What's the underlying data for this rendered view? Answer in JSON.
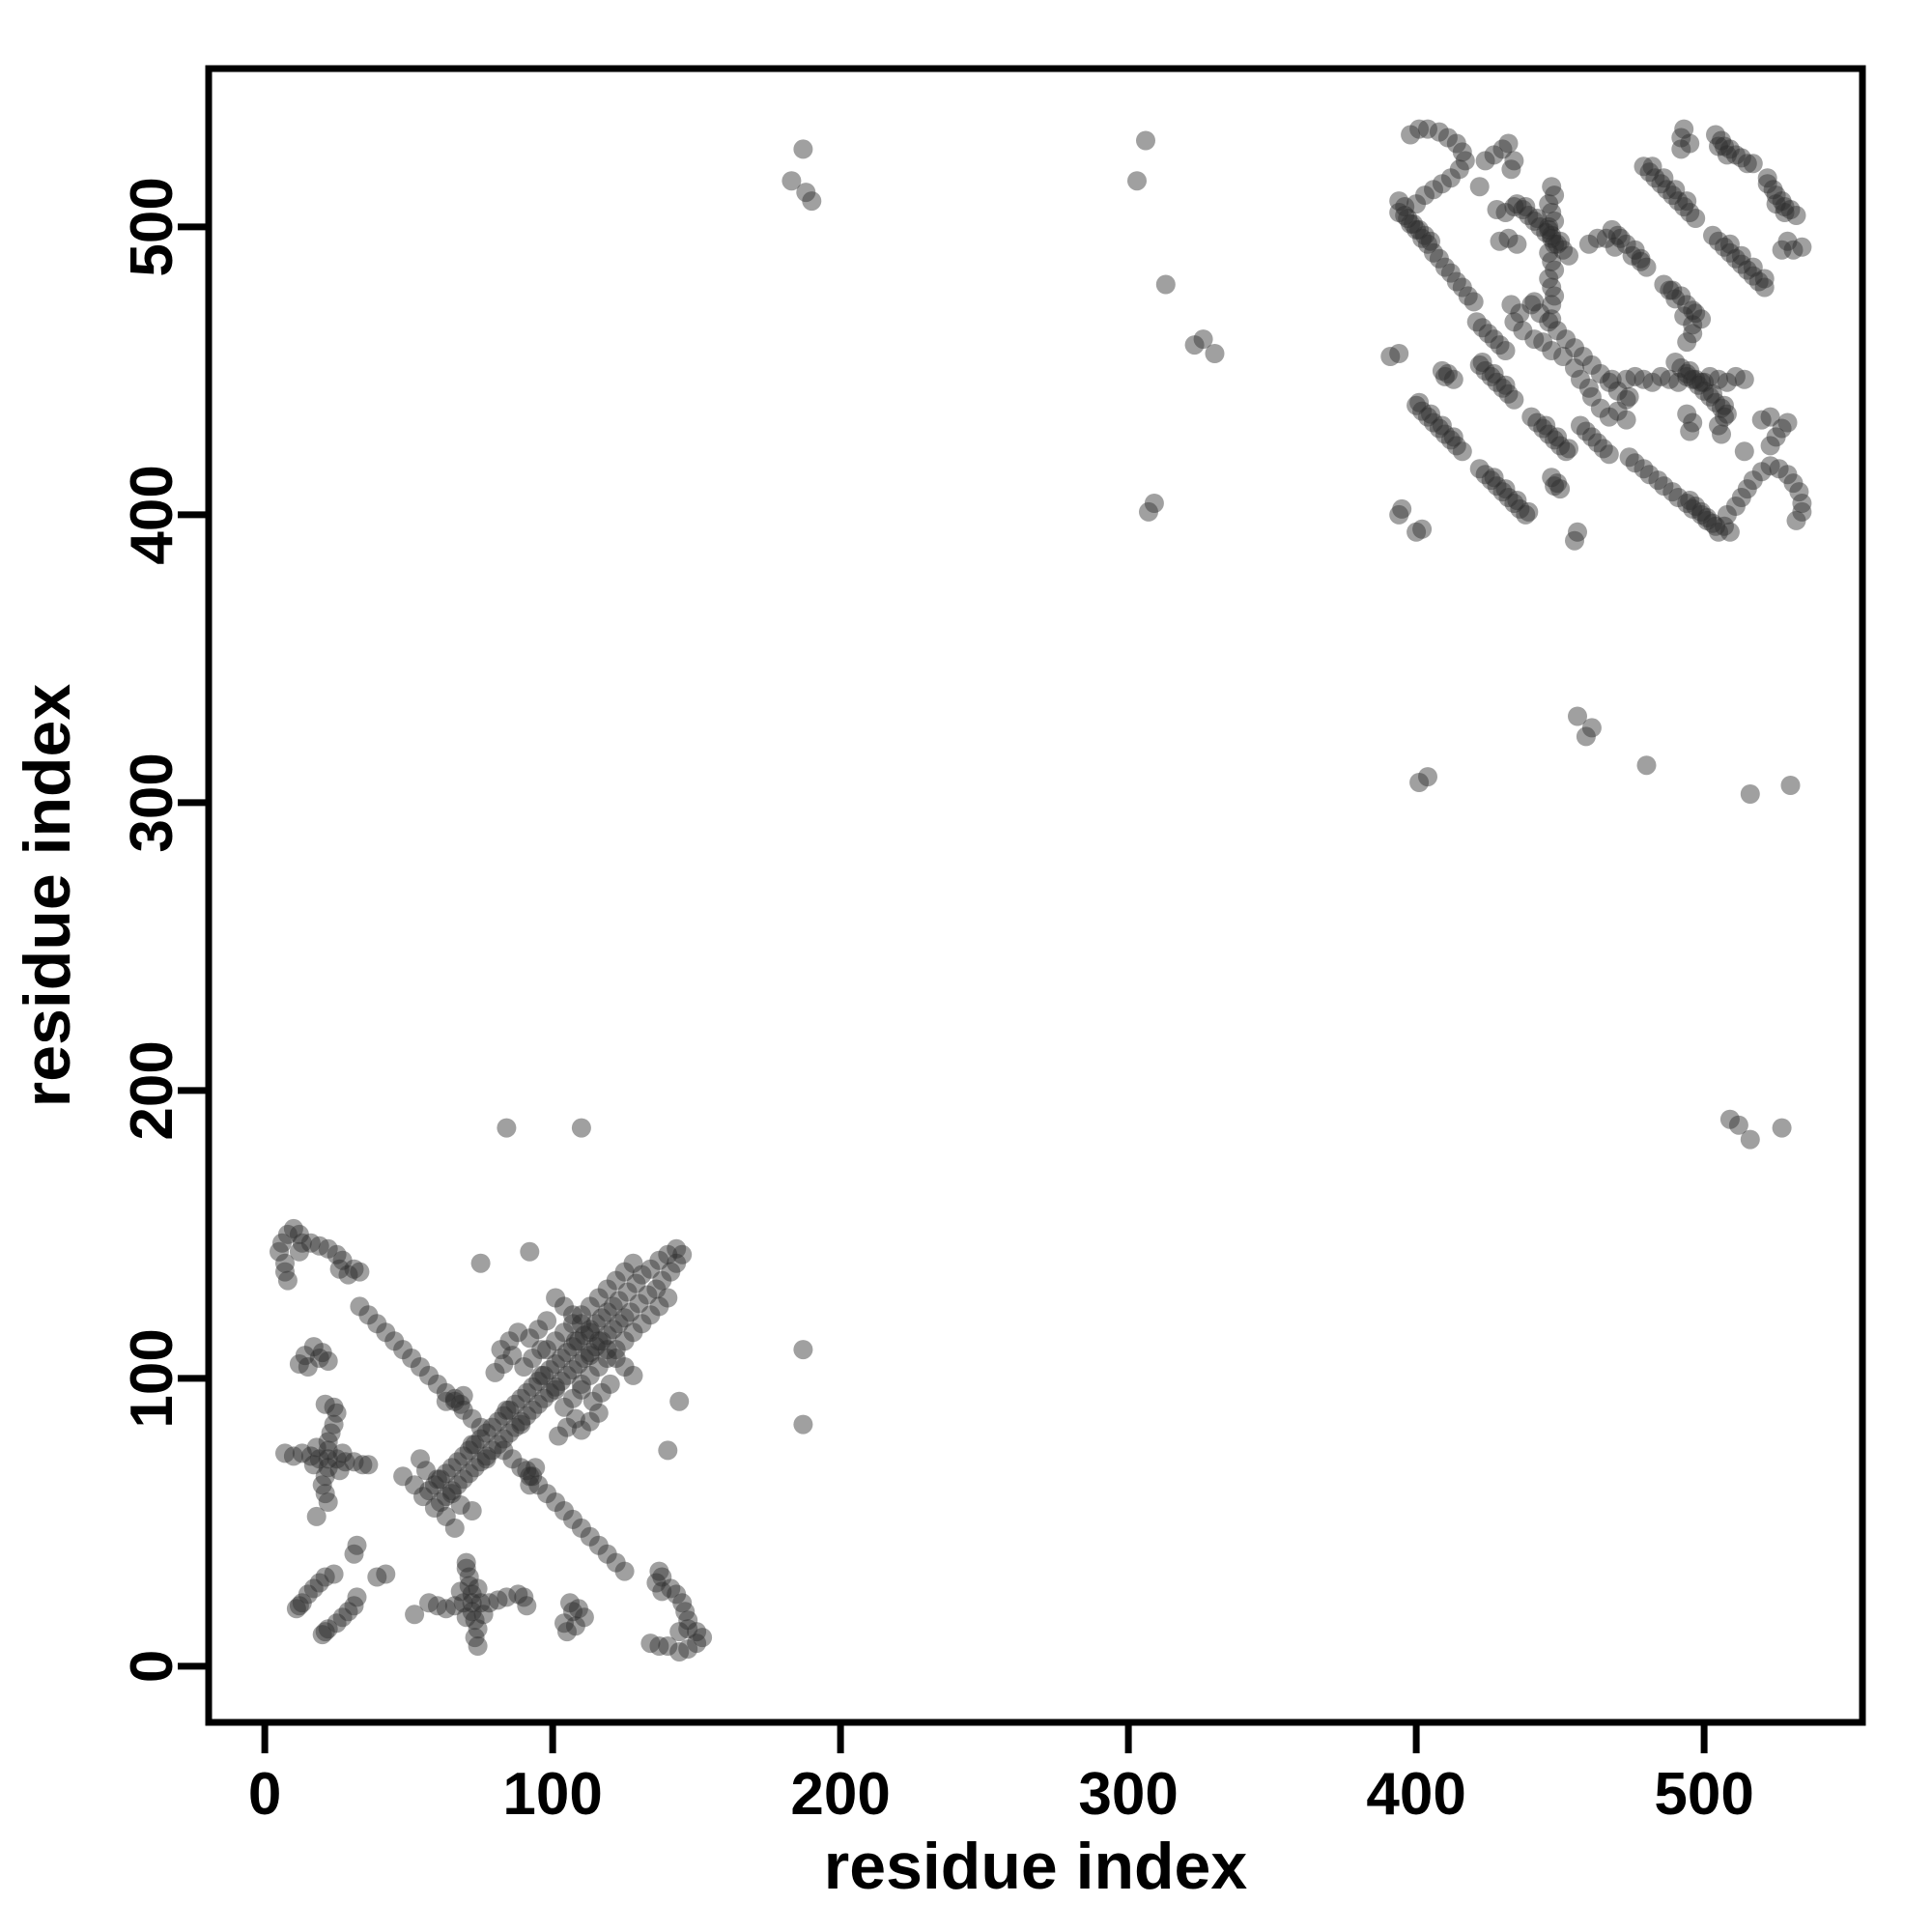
{
  "chart_data": {
    "type": "scatter",
    "title": "",
    "xlabel": "residue index",
    "ylabel": "residue index",
    "x_ticks": [
      0,
      100,
      200,
      300,
      400,
      500
    ],
    "y_ticks": [
      0,
      100,
      200,
      300,
      400,
      500
    ],
    "xlim": [
      -19.5,
      555
    ],
    "ylim": [
      -19.5,
      555
    ],
    "grid": false,
    "legend": "none",
    "point_color": "#2d2d2d",
    "point_opacity": 0.45,
    "point_radius_px": 10,
    "symmetric_mirror": true,
    "description": "Protein residue-residue contact map; points listed for upper triangle (x<y) and mirrored across the diagonal",
    "points": [
      [
        5,
        144
      ],
      [
        6,
        147
      ],
      [
        8,
        150
      ],
      [
        10,
        152
      ],
      [
        12,
        150
      ],
      [
        13,
        147
      ],
      [
        12,
        144
      ],
      [
        7,
        140
      ],
      [
        7,
        137
      ],
      [
        8,
        134
      ],
      [
        16,
        147
      ],
      [
        19,
        146
      ],
      [
        22,
        145
      ],
      [
        25,
        143
      ],
      [
        27,
        141
      ],
      [
        26,
        138
      ],
      [
        29,
        136
      ],
      [
        31,
        138
      ],
      [
        33,
        137
      ],
      [
        12,
        105
      ],
      [
        15,
        104
      ],
      [
        14,
        108
      ],
      [
        17,
        111
      ],
      [
        20,
        109
      ],
      [
        22,
        106
      ],
      [
        19,
        107
      ],
      [
        21,
        91
      ],
      [
        24,
        90
      ],
      [
        25,
        88
      ],
      [
        22,
        72
      ],
      [
        19,
        72
      ],
      [
        25,
        72
      ],
      [
        22,
        75
      ],
      [
        22,
        69
      ],
      [
        16,
        73
      ],
      [
        28,
        71
      ],
      [
        22,
        78
      ],
      [
        21,
        66
      ],
      [
        13,
        74
      ],
      [
        31,
        71
      ],
      [
        23,
        81
      ],
      [
        20,
        63
      ],
      [
        10,
        73
      ],
      [
        34,
        70
      ],
      [
        24,
        84
      ],
      [
        21,
        60
      ],
      [
        7,
        74
      ],
      [
        36,
        70
      ],
      [
        17,
        70
      ],
      [
        27,
        74
      ],
      [
        18,
        76
      ],
      [
        26,
        68
      ],
      [
        22,
        57
      ],
      [
        18,
        52
      ],
      [
        11,
        20
      ],
      [
        12,
        21
      ],
      [
        13,
        22
      ],
      [
        15,
        25
      ],
      [
        17,
        27
      ],
      [
        19,
        29
      ],
      [
        21,
        31
      ],
      [
        24,
        32
      ],
      [
        31,
        39
      ],
      [
        32,
        42
      ],
      [
        84,
        187
      ],
      [
        110,
        187
      ],
      [
        55,
        59
      ],
      [
        57,
        61
      ],
      [
        59,
        63
      ],
      [
        61,
        65
      ],
      [
        63,
        67
      ],
      [
        65,
        69
      ],
      [
        67,
        71
      ],
      [
        69,
        73
      ],
      [
        71,
        75
      ],
      [
        73,
        77
      ],
      [
        75,
        79
      ],
      [
        77,
        81
      ],
      [
        79,
        83
      ],
      [
        81,
        85
      ],
      [
        83,
        87
      ],
      [
        85,
        89
      ],
      [
        87,
        91
      ],
      [
        89,
        93
      ],
      [
        91,
        95
      ],
      [
        93,
        97
      ],
      [
        95,
        99
      ],
      [
        97,
        101
      ],
      [
        99,
        103
      ],
      [
        101,
        105
      ],
      [
        103,
        107
      ],
      [
        105,
        109
      ],
      [
        107,
        111
      ],
      [
        109,
        113
      ],
      [
        111,
        115
      ],
      [
        113,
        117
      ],
      [
        115,
        119
      ],
      [
        117,
        121
      ],
      [
        119,
        123
      ],
      [
        121,
        125
      ],
      [
        123,
        127
      ],
      [
        60,
        65
      ],
      [
        72,
        77
      ],
      [
        84,
        89
      ],
      [
        96,
        101
      ],
      [
        108,
        113
      ],
      [
        126,
        130
      ],
      [
        129,
        133
      ],
      [
        131,
        136
      ],
      [
        134,
        138
      ],
      [
        137,
        141
      ],
      [
        140,
        143
      ],
      [
        143,
        145
      ],
      [
        33,
        125
      ],
      [
        36,
        122
      ],
      [
        39,
        119
      ],
      [
        42,
        116
      ],
      [
        45,
        113
      ],
      [
        48,
        110
      ],
      [
        51,
        107
      ],
      [
        54,
        104
      ],
      [
        57,
        101
      ],
      [
        60,
        98
      ],
      [
        63,
        95
      ],
      [
        66,
        92
      ],
      [
        69,
        89
      ],
      [
        72,
        86
      ],
      [
        75,
        83
      ],
      [
        101,
        128
      ],
      [
        104,
        125
      ],
      [
        107,
        122
      ],
      [
        110,
        119
      ],
      [
        113,
        116
      ],
      [
        98,
        110
      ],
      [
        101,
        113
      ],
      [
        104,
        116
      ],
      [
        107,
        119
      ],
      [
        110,
        122
      ],
      [
        113,
        125
      ],
      [
        116,
        128
      ],
      [
        119,
        131
      ],
      [
        122,
        134
      ],
      [
        125,
        137
      ],
      [
        128,
        140
      ],
      [
        80,
        102
      ],
      [
        83,
        105
      ],
      [
        86,
        108
      ],
      [
        82,
        110
      ],
      [
        85,
        113
      ],
      [
        88,
        116
      ],
      [
        90,
        104
      ],
      [
        93,
        107
      ],
      [
        96,
        110
      ],
      [
        92,
        114
      ],
      [
        95,
        117
      ],
      [
        98,
        120
      ],
      [
        48,
        66
      ],
      [
        52,
        63
      ],
      [
        56,
        68
      ],
      [
        54,
        72
      ],
      [
        63,
        92
      ],
      [
        66,
        93
      ],
      [
        68,
        91
      ],
      [
        69,
        94
      ],
      [
        75,
        140
      ],
      [
        92,
        144
      ],
      [
        187,
        527
      ],
      [
        183,
        516
      ],
      [
        188,
        512
      ],
      [
        190,
        509
      ],
      [
        306,
        530
      ],
      [
        303,
        516
      ],
      [
        313,
        480
      ],
      [
        323,
        459
      ],
      [
        326,
        461
      ],
      [
        330,
        456
      ],
      [
        309,
        404
      ],
      [
        307,
        401
      ],
      [
        398,
        532
      ],
      [
        401,
        534
      ],
      [
        404,
        534
      ],
      [
        408,
        533
      ],
      [
        411,
        531
      ],
      [
        414,
        529
      ],
      [
        416,
        526
      ],
      [
        417,
        523
      ],
      [
        415,
        520
      ],
      [
        412,
        517
      ],
      [
        409,
        515
      ],
      [
        406,
        513
      ],
      [
        403,
        511
      ],
      [
        400,
        508
      ],
      [
        396,
        507
      ],
      [
        394,
        505
      ],
      [
        397,
        503
      ],
      [
        399,
        501
      ],
      [
        401,
        499
      ],
      [
        403,
        497
      ],
      [
        405,
        495
      ],
      [
        424,
        523
      ],
      [
        427,
        525
      ],
      [
        430,
        527
      ],
      [
        432,
        529
      ],
      [
        434,
        523
      ],
      [
        433,
        520
      ],
      [
        422,
        514
      ],
      [
        492,
        527
      ],
      [
        492,
        531
      ],
      [
        493,
        534
      ],
      [
        495,
        529
      ],
      [
        504,
        532
      ],
      [
        506,
        530
      ],
      [
        507,
        528
      ],
      [
        509,
        527
      ],
      [
        511,
        525
      ],
      [
        513,
        524
      ],
      [
        505,
        528
      ],
      [
        508,
        525
      ],
      [
        515,
        522
      ],
      [
        517,
        522
      ],
      [
        479,
        521
      ],
      [
        481,
        519
      ],
      [
        483,
        517
      ],
      [
        485,
        515
      ],
      [
        487,
        513
      ],
      [
        489,
        511
      ],
      [
        491,
        509
      ],
      [
        493,
        507
      ],
      [
        495,
        505
      ],
      [
        497,
        503
      ],
      [
        482,
        521
      ],
      [
        486,
        517
      ],
      [
        490,
        513
      ],
      [
        494,
        509
      ],
      [
        468,
        499
      ],
      [
        470,
        497
      ],
      [
        473,
        494
      ],
      [
        476,
        492
      ],
      [
        478,
        489
      ],
      [
        471,
        496
      ],
      [
        435,
        508
      ],
      [
        437,
        506
      ],
      [
        439,
        504
      ],
      [
        441,
        502
      ],
      [
        443,
        500
      ],
      [
        445,
        498
      ],
      [
        447,
        496
      ],
      [
        449,
        494
      ],
      [
        451,
        492
      ],
      [
        453,
        490
      ],
      [
        438,
        507
      ],
      [
        442,
        503
      ],
      [
        446,
        499
      ],
      [
        450,
        495
      ],
      [
        447,
        514
      ],
      [
        448,
        511
      ],
      [
        446,
        508
      ],
      [
        447,
        505
      ],
      [
        448,
        502
      ],
      [
        446,
        500
      ],
      [
        447,
        497
      ],
      [
        448,
        494
      ],
      [
        446,
        491
      ],
      [
        447,
        488
      ],
      [
        448,
        485
      ],
      [
        446,
        482
      ],
      [
        447,
        479
      ],
      [
        448,
        476
      ],
      [
        447,
        473
      ],
      [
        460,
        494
      ],
      [
        463,
        496
      ],
      [
        466,
        496
      ],
      [
        469,
        493
      ],
      [
        475,
        490
      ],
      [
        478,
        488
      ],
      [
        480,
        486
      ],
      [
        394,
        509
      ],
      [
        396,
        504
      ],
      [
        398,
        501
      ],
      [
        400,
        499
      ],
      [
        402,
        496
      ],
      [
        404,
        494
      ],
      [
        406,
        491
      ],
      [
        408,
        489
      ],
      [
        410,
        486
      ],
      [
        412,
        484
      ],
      [
        414,
        481
      ],
      [
        416,
        479
      ],
      [
        418,
        476
      ],
      [
        420,
        474
      ],
      [
        433,
        473
      ],
      [
        436,
        470
      ],
      [
        434,
        467
      ],
      [
        437,
        464
      ],
      [
        441,
        461
      ],
      [
        444,
        460
      ],
      [
        447,
        457
      ],
      [
        451,
        455
      ],
      [
        429,
        495
      ],
      [
        432,
        496
      ],
      [
        435,
        494
      ],
      [
        428,
        506
      ],
      [
        431,
        505
      ],
      [
        434,
        507
      ],
      [
        409,
        450
      ],
      [
        410,
        448
      ],
      [
        413,
        447
      ],
      [
        411,
        449
      ],
      [
        395,
        402
      ],
      [
        394,
        400
      ],
      [
        391,
        455
      ],
      [
        394,
        456
      ],
      [
        400,
        438
      ],
      [
        402,
        436
      ],
      [
        404,
        434
      ],
      [
        406,
        432
      ],
      [
        408,
        430
      ],
      [
        410,
        428
      ],
      [
        412,
        426
      ],
      [
        414,
        424
      ],
      [
        416,
        422
      ],
      [
        401,
        439
      ],
      [
        405,
        435
      ],
      [
        409,
        431
      ],
      [
        413,
        427
      ],
      [
        422,
        452
      ],
      [
        424,
        450
      ],
      [
        426,
        448
      ],
      [
        428,
        446
      ],
      [
        430,
        444
      ],
      [
        432,
        442
      ],
      [
        434,
        440
      ],
      [
        423,
        453
      ],
      [
        427,
        449
      ],
      [
        431,
        445
      ],
      [
        425,
        463
      ],
      [
        427,
        461
      ],
      [
        429,
        459
      ],
      [
        431,
        457
      ],
      [
        421,
        467
      ],
      [
        423,
        465
      ],
      [
        440,
        473
      ],
      [
        443,
        470
      ],
      [
        446,
        467
      ],
      [
        449,
        464
      ],
      [
        452,
        461
      ],
      [
        455,
        458
      ],
      [
        441,
        474
      ],
      [
        447,
        468
      ]
    ]
  }
}
